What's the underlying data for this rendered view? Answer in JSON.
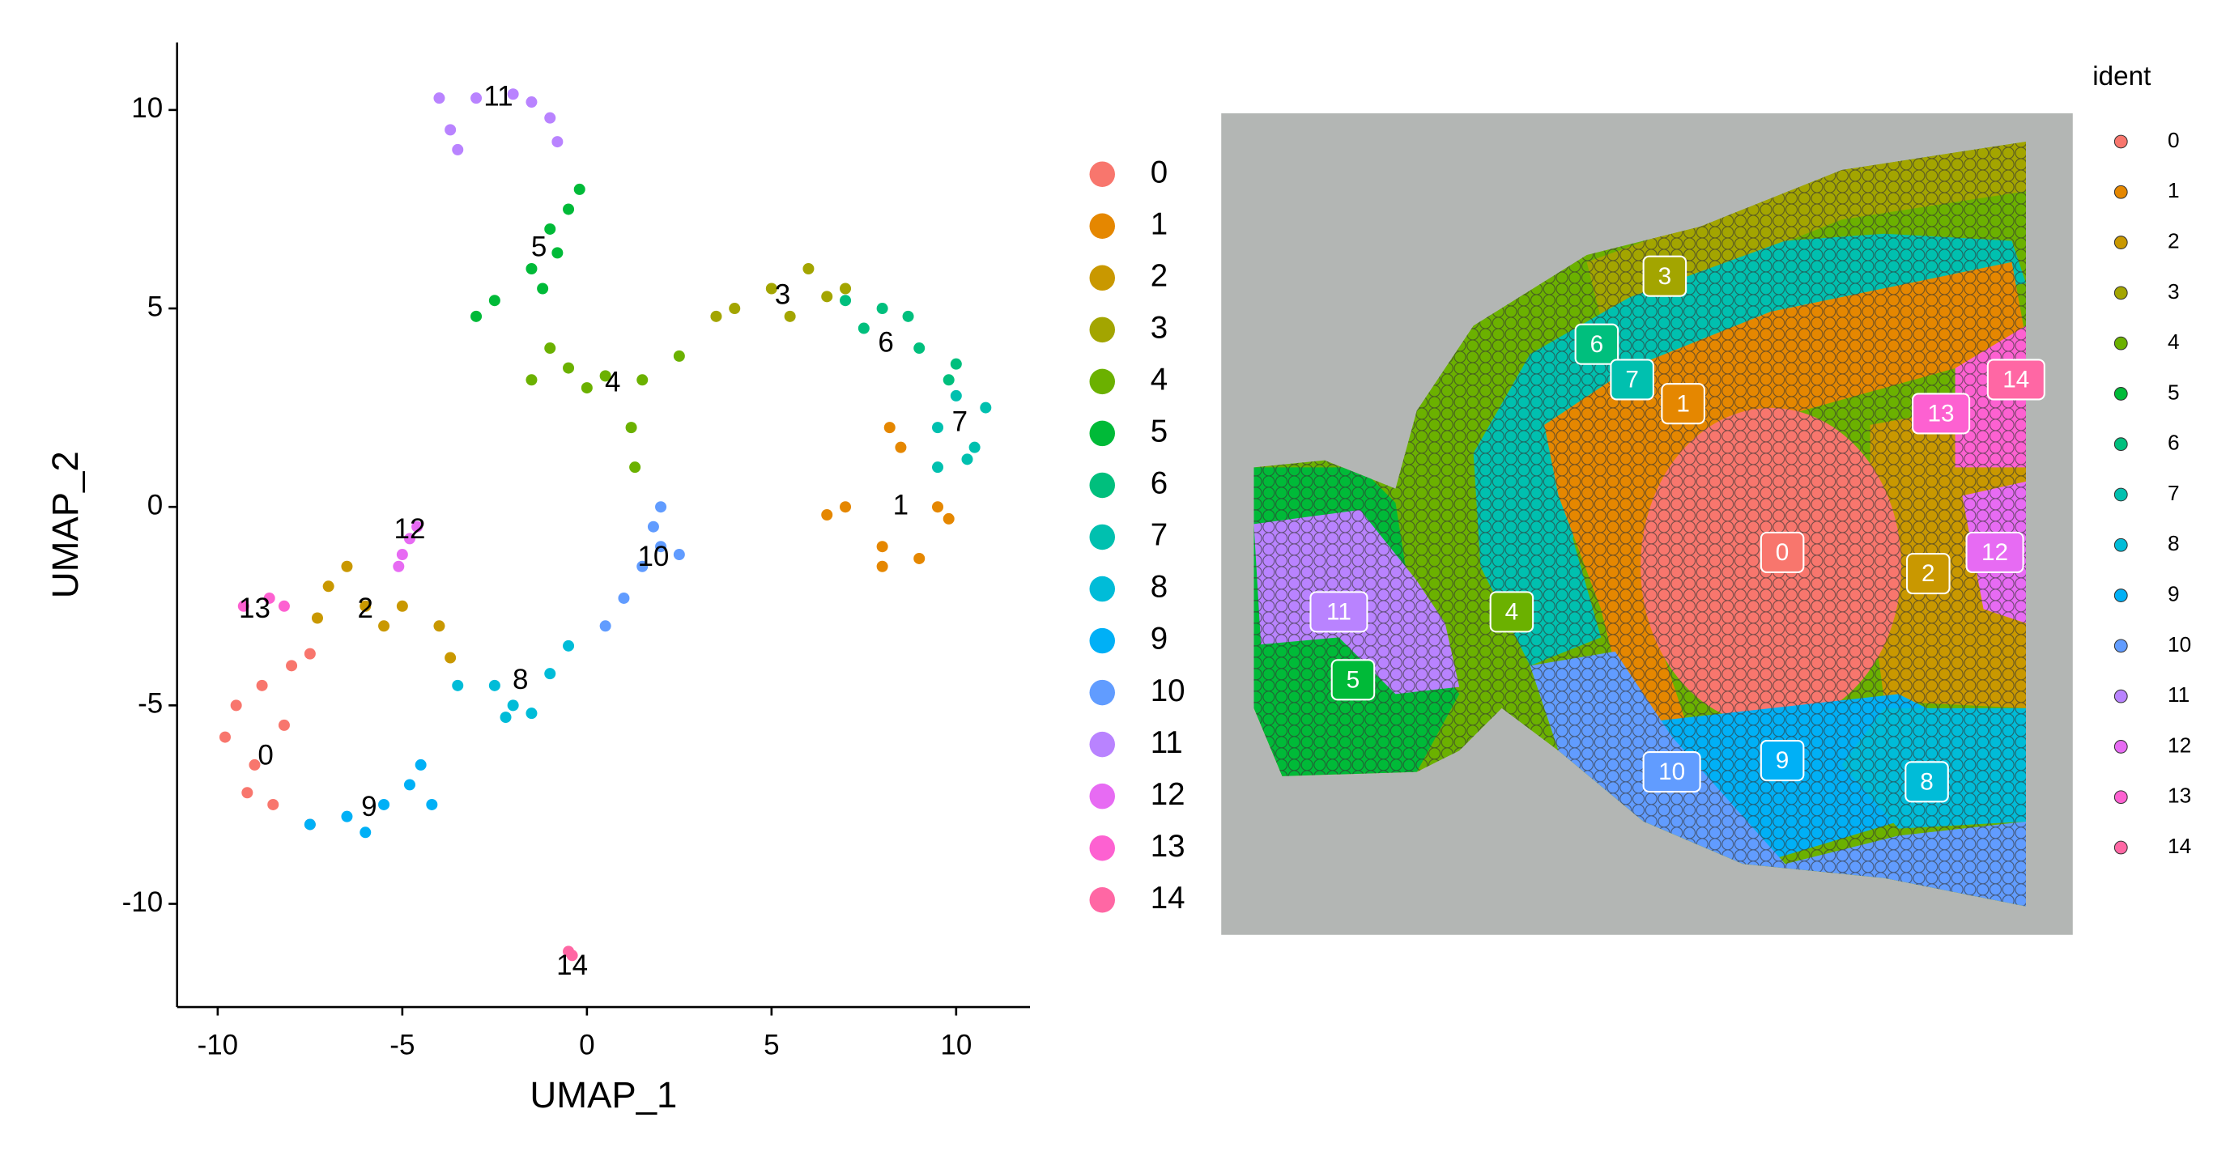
{
  "chart_data": [
    {
      "type": "scatter",
      "xlabel": "UMAP_1",
      "ylabel": "UMAP_2",
      "xlim": [
        -11.1,
        12
      ],
      "ylim": [
        -12.6,
        11.7
      ],
      "xticks": [
        -10,
        -5,
        0,
        5,
        10
      ],
      "yticks": [
        -10,
        -5,
        0,
        5,
        10
      ],
      "series": [
        {
          "name": "0",
          "color": "#F8766D",
          "x": [
            -9.5,
            -9,
            -8.5,
            -9.8,
            -8,
            -8.8,
            -7.5,
            -9.2,
            -8.2,
            -7.5
          ],
          "y": [
            -5,
            -6.5,
            -7.5,
            -5.8,
            -4,
            -4.5,
            -8,
            -7.2,
            -5.5,
            -3.7
          ],
          "label_x": -8.7,
          "label_y": -6.3
        },
        {
          "name": "1",
          "color": "#E58700",
          "x": [
            7,
            8,
            9,
            9.5,
            8.5,
            6.5,
            8,
            9.8,
            8.2
          ],
          "y": [
            0,
            -1,
            -1.3,
            0,
            1.5,
            -0.2,
            -1.5,
            -0.3,
            2
          ],
          "label_x": 8.5,
          "label_y": 0
        },
        {
          "name": "2",
          "color": "#C99800",
          "x": [
            -7,
            -6,
            -5,
            -4,
            -6.5,
            -5.5,
            -3.7,
            -7.3
          ],
          "y": [
            -2,
            -2.5,
            -2.5,
            -3,
            -1.5,
            -3,
            -3.8,
            -2.8
          ],
          "label_x": -6,
          "label_y": -2.6
        },
        {
          "name": "3",
          "color": "#A3A500",
          "x": [
            4,
            5,
            6,
            6.5,
            3.5,
            5.5,
            7
          ],
          "y": [
            5,
            5.5,
            6,
            5.3,
            4.8,
            4.8,
            5.5
          ],
          "label_x": 5.3,
          "label_y": 5.3
        },
        {
          "name": "4",
          "color": "#6BB100",
          "x": [
            -1.5,
            -0.5,
            0.5,
            1.5,
            2.5,
            1.2,
            1.3,
            -1,
            0
          ],
          "y": [
            3.2,
            3.5,
            3.3,
            3.2,
            3.8,
            2,
            1,
            4,
            3
          ],
          "label_x": 0.7,
          "label_y": 3.1
        },
        {
          "name": "5",
          "color": "#00BA38",
          "x": [
            -2.5,
            -1.5,
            -1,
            -0.5,
            -3,
            -0.8,
            -1.2,
            -0.2
          ],
          "y": [
            5.2,
            6,
            7,
            7.5,
            4.8,
            6.4,
            5.5,
            8
          ],
          "label_x": -1.3,
          "label_y": 6.5
        },
        {
          "name": "6",
          "color": "#00BF7D",
          "x": [
            7,
            8,
            9,
            9.8,
            7.5,
            8.7,
            10
          ],
          "y": [
            5.2,
            5,
            4,
            3.2,
            4.5,
            4.8,
            3.6
          ],
          "label_x": 8.1,
          "label_y": 4.1
        },
        {
          "name": "7",
          "color": "#00C0AF",
          "x": [
            9.5,
            10,
            10.5,
            10.8,
            9.5,
            10.3
          ],
          "y": [
            2,
            2.8,
            1.5,
            2.5,
            1,
            1.2
          ],
          "label_x": 10.1,
          "label_y": 2.1
        },
        {
          "name": "8",
          "color": "#00BCD8",
          "x": [
            -3.5,
            -2.5,
            -2,
            -1.5,
            -1,
            -0.5,
            -2.2
          ],
          "y": [
            -4.5,
            -4.5,
            -5,
            -5.2,
            -4.2,
            -3.5,
            -5.3
          ],
          "label_x": -1.8,
          "label_y": -4.4
        },
        {
          "name": "9",
          "color": "#00B0F6",
          "x": [
            -7.5,
            -6.5,
            -5.5,
            -4.8,
            -4.5,
            -4.2,
            -6
          ],
          "y": [
            -8,
            -7.8,
            -7.5,
            -7,
            -6.5,
            -7.5,
            -8.2
          ],
          "label_x": -5.9,
          "label_y": -7.6
        },
        {
          "name": "10",
          "color": "#619CFF",
          "x": [
            0.5,
            1,
            1.5,
            2,
            2.5,
            2,
            1.8
          ],
          "y": [
            -3,
            -2.3,
            -1.5,
            -1,
            -1.2,
            0,
            -0.5
          ],
          "label_x": 1.8,
          "label_y": -1.3
        },
        {
          "name": "11",
          "color": "#B983FF",
          "x": [
            -4,
            -3,
            -2,
            -1.5,
            -1,
            -0.8,
            -3.7,
            -3.5
          ],
          "y": [
            10.3,
            10.3,
            10.4,
            10.2,
            9.8,
            9.2,
            9.5,
            9
          ],
          "label_x": -2.4,
          "label_y": 10.3
        },
        {
          "name": "12",
          "color": "#E76BF3",
          "x": [
            -5,
            -4.8,
            -4.6,
            -5.1
          ],
          "y": [
            -1.2,
            -0.8,
            -0.5,
            -1.5
          ],
          "label_x": -4.8,
          "label_y": -0.6
        },
        {
          "name": "13",
          "color": "#FD61D1",
          "x": [
            -9.3,
            -8.6,
            -8.2
          ],
          "y": [
            -2.5,
            -2.3,
            -2.5
          ],
          "label_x": -9,
          "label_y": -2.6
        },
        {
          "name": "14",
          "color": "#FF67A4",
          "x": [
            -0.5,
            -0.4
          ],
          "y": [
            -11.2,
            -11.3
          ],
          "label_x": -0.4,
          "label_y": -11.6
        }
      ]
    },
    {
      "type": "spatial",
      "legend_title": "ident"
    }
  ]
}
